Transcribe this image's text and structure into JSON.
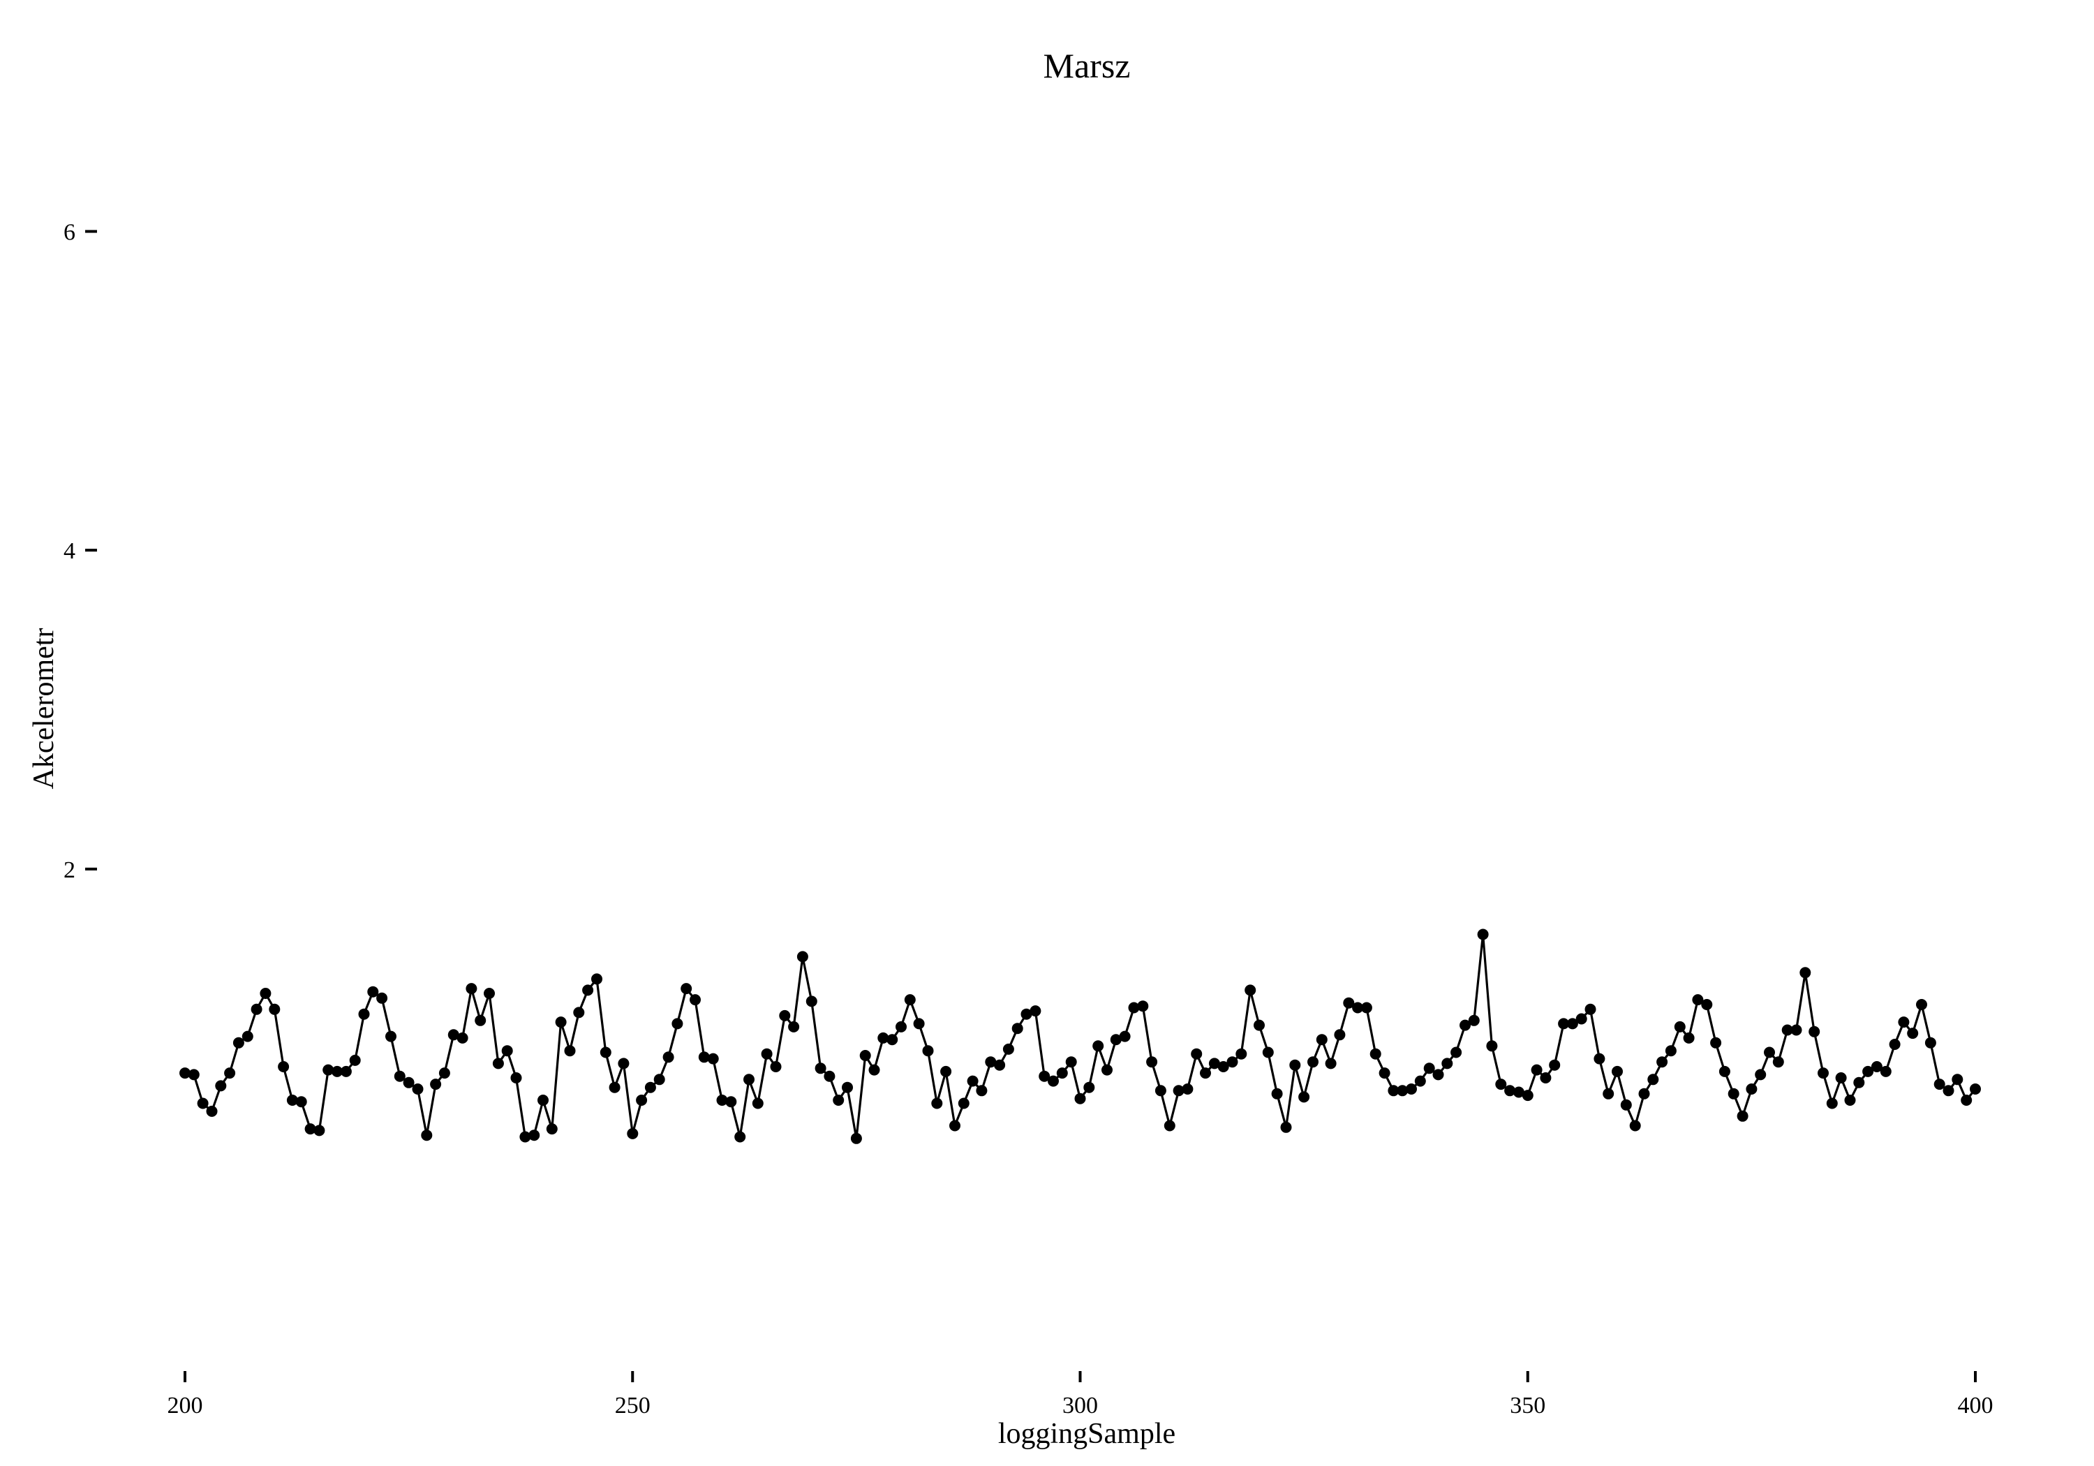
{
  "chart_data": {
    "type": "line",
    "title": "Marsz",
    "xlabel": "loggingSample",
    "ylabel": "Akcelerometr",
    "xlim": [
      200,
      400
    ],
    "ylim": [
      -1.25,
      7.25
    ],
    "xticks": [
      200,
      250,
      300,
      350,
      400
    ],
    "yticks": [
      2,
      4,
      6
    ],
    "grid": false,
    "legend": "none",
    "markers": true,
    "colors": {
      "line": "#000000",
      "marker": "#000000"
    },
    "x": [
      200,
      201,
      202,
      203,
      204,
      205,
      206,
      207,
      208,
      209,
      210,
      211,
      212,
      213,
      214,
      215,
      216,
      217,
      218,
      219,
      220,
      221,
      222,
      223,
      224,
      225,
      226,
      227,
      228,
      229,
      230,
      231,
      232,
      233,
      234,
      235,
      236,
      237,
      238,
      239,
      240,
      241,
      242,
      243,
      244,
      245,
      246,
      247,
      248,
      249,
      250,
      251,
      252,
      253,
      254,
      255,
      256,
      257,
      258,
      259,
      260,
      261,
      262,
      263,
      264,
      265,
      266,
      267,
      268,
      269,
      270,
      271,
      272,
      273,
      274,
      275,
      276,
      277,
      278,
      279,
      280,
      281,
      282,
      283,
      284,
      285,
      286,
      287,
      288,
      289,
      290,
      291,
      292,
      293,
      294,
      295,
      296,
      297,
      298,
      299,
      300,
      301,
      302,
      303,
      304,
      305,
      306,
      307,
      308,
      309,
      310,
      311,
      312,
      313,
      314,
      315,
      316,
      317,
      318,
      319,
      320,
      321,
      322,
      323,
      324,
      325,
      326,
      327,
      328,
      329,
      330,
      331,
      332,
      333,
      334,
      335,
      336,
      337,
      338,
      339,
      340,
      341,
      342,
      343,
      344,
      345,
      346,
      347,
      348,
      349,
      350,
      351,
      352,
      353,
      354,
      355,
      356,
      357,
      358,
      359,
      360,
      361,
      362,
      363,
      364,
      365,
      366,
      367,
      368,
      369,
      370,
      371,
      372,
      373,
      374,
      375,
      376,
      377,
      378,
      379,
      380,
      381,
      382,
      383,
      384,
      385,
      386,
      387,
      388,
      389,
      390,
      391,
      392,
      393,
      394,
      395,
      396,
      397,
      398,
      399,
      400
    ],
    "series": [
      {
        "values": [
          0.72,
          0.71,
          0.53,
          0.48,
          0.64,
          0.72,
          0.91,
          0.95,
          1.12,
          1.22,
          1.12,
          0.76,
          0.55,
          0.54,
          0.37,
          0.36,
          0.74,
          0.73,
          0.73,
          0.8,
          1.09,
          1.23,
          1.19,
          0.95,
          0.7,
          0.66,
          0.62,
          0.33,
          0.65,
          0.72,
          0.96,
          0.94,
          1.25,
          1.05,
          1.22,
          0.78,
          0.86,
          0.69,
          0.32,
          0.33,
          0.55,
          0.37,
          1.04,
          0.86,
          1.1,
          1.24,
          1.31,
          0.85,
          0.63,
          0.78,
          0.34,
          0.55,
          0.63,
          0.68,
          0.82,
          1.03,
          1.25,
          1.18,
          0.82,
          0.81,
          0.55,
          0.54,
          0.32,
          0.68,
          0.53,
          0.84,
          0.76,
          1.08,
          1.01,
          1.45,
          1.17,
          0.75,
          0.7,
          0.55,
          0.63,
          0.31,
          0.83,
          0.74,
          0.94,
          0.93,
          1.01,
          1.18,
          1.03,
          0.86,
          0.53,
          0.73,
          0.39,
          0.53,
          0.67,
          0.61,
          0.79,
          0.77,
          0.87,
          1.0,
          1.09,
          1.11,
          0.7,
          0.67,
          0.72,
          0.79,
          0.56,
          0.63,
          0.89,
          0.74,
          0.93,
          0.95,
          1.13,
          1.14,
          0.79,
          0.61,
          0.39,
          0.61,
          0.62,
          0.84,
          0.72,
          0.78,
          0.76,
          0.79,
          0.84,
          1.24,
          1.02,
          0.85,
          0.59,
          0.38,
          0.77,
          0.57,
          0.79,
          0.93,
          0.78,
          0.96,
          1.16,
          1.13,
          1.13,
          0.84,
          0.72,
          0.61,
          0.61,
          0.62,
          0.67,
          0.75,
          0.71,
          0.78,
          0.85,
          1.02,
          1.05,
          1.59,
          0.89,
          0.65,
          0.61,
          0.6,
          0.58,
          0.74,
          0.69,
          0.77,
          1.03,
          1.03,
          1.06,
          1.12,
          0.81,
          0.59,
          0.73,
          0.52,
          0.39,
          0.59,
          0.68,
          0.79,
          0.86,
          1.01,
          0.94,
          1.18,
          1.15,
          0.91,
          0.73,
          0.59,
          0.45,
          0.62,
          0.71,
          0.85,
          0.79,
          0.99,
          0.99,
          1.35,
          0.98,
          0.72,
          0.53,
          0.69,
          0.55,
          0.66,
          0.73,
          0.76,
          0.73,
          0.9,
          1.04,
          0.97,
          1.15,
          0.91,
          0.65,
          0.61,
          0.68,
          0.55,
          0.62
        ]
      }
    ]
  }
}
